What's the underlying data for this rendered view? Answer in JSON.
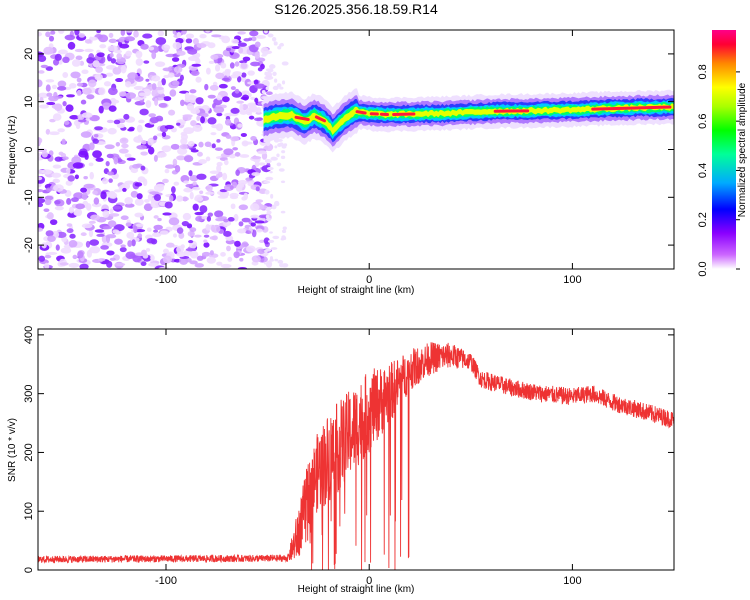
{
  "title": "S126.2025.356.18.59.R14",
  "chart_data": [
    {
      "type": "heatmap",
      "xlabel": "Height of straight line (km)",
      "ylabel": "Frequency (Hz)",
      "xlim": [
        -163,
        150
      ],
      "ylim": [
        -25,
        25
      ],
      "xticks": [
        -100,
        0,
        100
      ],
      "yticks": [
        -20,
        -10,
        0,
        10,
        20
      ],
      "colorbar": {
        "label": "Normalized spectral amplitude",
        "range": [
          0.0,
          0.97
        ],
        "ticks": [
          0.0,
          0.2,
          0.4,
          0.6,
          0.8
        ],
        "colormap": [
          "#ffffff",
          "#8a00ff",
          "#0000ff",
          "#00ccff",
          "#00ff00",
          "#ffff00",
          "#ff8800",
          "#ff0044",
          "#ff0088"
        ]
      },
      "noise_region_x": [
        -163,
        -52
      ],
      "signal_line": [
        {
          "x": -52,
          "y": 6.2
        },
        {
          "x": -45,
          "y": 7.0
        },
        {
          "x": -38,
          "y": 7.2
        },
        {
          "x": -32,
          "y": 5.8
        },
        {
          "x": -27,
          "y": 7.0
        },
        {
          "x": -22,
          "y": 6.0
        },
        {
          "x": -18,
          "y": 4.0
        },
        {
          "x": -12,
          "y": 6.5
        },
        {
          "x": -7,
          "y": 8.0
        },
        {
          "x": 0,
          "y": 7.5
        },
        {
          "x": 10,
          "y": 7.3
        },
        {
          "x": 20,
          "y": 7.4
        },
        {
          "x": 40,
          "y": 7.6
        },
        {
          "x": 60,
          "y": 8.0
        },
        {
          "x": 80,
          "y": 8.1
        },
        {
          "x": 100,
          "y": 8.3
        },
        {
          "x": 120,
          "y": 8.6
        },
        {
          "x": 150,
          "y": 8.9
        }
      ]
    },
    {
      "type": "line",
      "xlabel": "Height of straight line (km)",
      "ylabel": "SNR (10 * v/v)",
      "xlim": [
        -163,
        150
      ],
      "ylim": [
        0,
        410
      ],
      "xticks": [
        -100,
        0,
        100
      ],
      "yticks": [
        0,
        100,
        200,
        300,
        400
      ],
      "line_color": "#ee3333",
      "envelope": [
        {
          "x": -163,
          "y": 18
        },
        {
          "x": -40,
          "y": 20
        },
        {
          "x": -35,
          "y": 60
        },
        {
          "x": -30,
          "y": 130
        },
        {
          "x": -25,
          "y": 170
        },
        {
          "x": -20,
          "y": 190
        },
        {
          "x": -10,
          "y": 230
        },
        {
          "x": 0,
          "y": 270
        },
        {
          "x": 10,
          "y": 300
        },
        {
          "x": 20,
          "y": 340
        },
        {
          "x": 30,
          "y": 360
        },
        {
          "x": 40,
          "y": 365
        },
        {
          "x": 50,
          "y": 355
        },
        {
          "x": 55,
          "y": 325
        },
        {
          "x": 70,
          "y": 310
        },
        {
          "x": 85,
          "y": 300
        },
        {
          "x": 100,
          "y": 295
        },
        {
          "x": 110,
          "y": 300
        },
        {
          "x": 120,
          "y": 285
        },
        {
          "x": 135,
          "y": 270
        },
        {
          "x": 150,
          "y": 255
        }
      ],
      "noise_amplitude": [
        {
          "x": -163,
          "a": 6
        },
        {
          "x": -40,
          "a": 6
        },
        {
          "x": -35,
          "a": 45
        },
        {
          "x": -20,
          "a": 80
        },
        {
          "x": 0,
          "a": 70
        },
        {
          "x": 20,
          "a": 35
        },
        {
          "x": 50,
          "a": 15
        },
        {
          "x": 150,
          "a": 15
        }
      ]
    }
  ]
}
